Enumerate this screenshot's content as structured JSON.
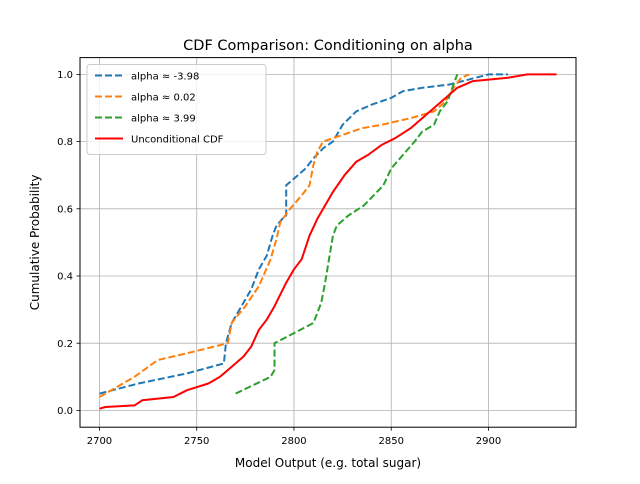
{
  "chart_data": {
    "type": "line",
    "title": "CDF Comparison: Conditioning on alpha",
    "xlabel": "Model Output (e.g. total sugar)",
    "ylabel": "Cumulative Probability",
    "xlim": [
      2690,
      2945
    ],
    "ylim": [
      -0.05,
      1.05
    ],
    "xticks": [
      2700,
      2750,
      2800,
      2850,
      2900
    ],
    "yticks": [
      0.0,
      0.2,
      0.4,
      0.6,
      0.8,
      1.0
    ],
    "xtick_labels": [
      "2700",
      "2750",
      "2800",
      "2850",
      "2900"
    ],
    "ytick_labels": [
      "0.0",
      "0.2",
      "0.4",
      "0.6",
      "0.8",
      "1.0"
    ],
    "grid": true,
    "legend_position": "upper-left",
    "series": [
      {
        "name": "alpha ≈ -3.98",
        "color": "#1f77b4",
        "style": "dashed",
        "points": [
          [
            2700,
            0.05
          ],
          [
            2720,
            0.08
          ],
          [
            2745,
            0.11
          ],
          [
            2764,
            0.14
          ],
          [
            2765,
            0.2
          ],
          [
            2768,
            0.26
          ],
          [
            2772,
            0.3
          ],
          [
            2778,
            0.36
          ],
          [
            2782,
            0.42
          ],
          [
            2786,
            0.46
          ],
          [
            2789,
            0.52
          ],
          [
            2791,
            0.55
          ],
          [
            2794,
            0.57
          ],
          [
            2796,
            0.58
          ],
          [
            2796,
            0.67
          ],
          [
            2800,
            0.69
          ],
          [
            2806,
            0.72
          ],
          [
            2810,
            0.75
          ],
          [
            2815,
            0.78
          ],
          [
            2820,
            0.8
          ],
          [
            2825,
            0.85
          ],
          [
            2832,
            0.89
          ],
          [
            2840,
            0.91
          ],
          [
            2850,
            0.93
          ],
          [
            2856,
            0.95
          ],
          [
            2866,
            0.96
          ],
          [
            2880,
            0.97
          ],
          [
            2900,
            1.0
          ],
          [
            2910,
            1.0
          ]
        ]
      },
      {
        "name": "alpha ≈ 0.02",
        "color": "#ff7f0e",
        "style": "dashed",
        "points": [
          [
            2700,
            0.04
          ],
          [
            2718,
            0.1
          ],
          [
            2730,
            0.15
          ],
          [
            2745,
            0.17
          ],
          [
            2766,
            0.2
          ],
          [
            2768,
            0.26
          ],
          [
            2775,
            0.31
          ],
          [
            2782,
            0.37
          ],
          [
            2788,
            0.45
          ],
          [
            2791,
            0.51
          ],
          [
            2793,
            0.56
          ],
          [
            2798,
            0.6
          ],
          [
            2804,
            0.64
          ],
          [
            2808,
            0.67
          ],
          [
            2810,
            0.73
          ],
          [
            2812,
            0.77
          ],
          [
            2815,
            0.8
          ],
          [
            2825,
            0.82
          ],
          [
            2835,
            0.84
          ],
          [
            2845,
            0.85
          ],
          [
            2860,
            0.87
          ],
          [
            2872,
            0.89
          ],
          [
            2878,
            0.92
          ],
          [
            2882,
            0.96
          ],
          [
            2886,
            0.99
          ],
          [
            2890,
            1.0
          ]
        ]
      },
      {
        "name": "alpha ≈ 3.99",
        "color": "#2ca02c",
        "style": "dashed",
        "points": [
          [
            2770,
            0.05
          ],
          [
            2788,
            0.1
          ],
          [
            2790,
            0.12
          ],
          [
            2790,
            0.2
          ],
          [
            2800,
            0.23
          ],
          [
            2810,
            0.26
          ],
          [
            2814,
            0.32
          ],
          [
            2816,
            0.38
          ],
          [
            2818,
            0.45
          ],
          [
            2820,
            0.52
          ],
          [
            2822,
            0.55
          ],
          [
            2828,
            0.58
          ],
          [
            2836,
            0.61
          ],
          [
            2846,
            0.67
          ],
          [
            2850,
            0.72
          ],
          [
            2856,
            0.76
          ],
          [
            2862,
            0.8
          ],
          [
            2866,
            0.83
          ],
          [
            2872,
            0.85
          ],
          [
            2875,
            0.89
          ],
          [
            2879,
            0.92
          ],
          [
            2882,
            0.97
          ],
          [
            2884,
            1.0
          ]
        ]
      },
      {
        "name": "Unconditional CDF",
        "color": "#ff0000",
        "style": "solid",
        "points": [
          [
            2700,
            0.005
          ],
          [
            2703,
            0.01
          ],
          [
            2718,
            0.015
          ],
          [
            2722,
            0.03
          ],
          [
            2738,
            0.04
          ],
          [
            2745,
            0.06
          ],
          [
            2756,
            0.08
          ],
          [
            2762,
            0.1
          ],
          [
            2766,
            0.12
          ],
          [
            2770,
            0.14
          ],
          [
            2774,
            0.16
          ],
          [
            2778,
            0.19
          ],
          [
            2782,
            0.24
          ],
          [
            2786,
            0.27
          ],
          [
            2790,
            0.31
          ],
          [
            2796,
            0.38
          ],
          [
            2800,
            0.42
          ],
          [
            2804,
            0.45
          ],
          [
            2808,
            0.52
          ],
          [
            2812,
            0.57
          ],
          [
            2816,
            0.61
          ],
          [
            2820,
            0.65
          ],
          [
            2826,
            0.7
          ],
          [
            2832,
            0.74
          ],
          [
            2838,
            0.76
          ],
          [
            2845,
            0.79
          ],
          [
            2852,
            0.81
          ],
          [
            2860,
            0.84
          ],
          [
            2868,
            0.88
          ],
          [
            2876,
            0.92
          ],
          [
            2884,
            0.96
          ],
          [
            2892,
            0.98
          ],
          [
            2910,
            0.99
          ],
          [
            2920,
            1.0
          ],
          [
            2935,
            1.0
          ]
        ]
      }
    ]
  }
}
